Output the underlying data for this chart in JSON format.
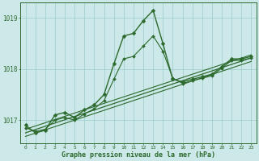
{
  "xlabel": "Graphe pression niveau de la mer (hPa)",
  "background_color": "#cce8e8",
  "plot_bg_color": "#cce8e8",
  "line_color": "#2d6a2d",
  "grid_color": "#99cccc",
  "tick_color": "#2d6a2d",
  "label_color": "#2d6a2d",
  "xlim": [
    -0.5,
    23.5
  ],
  "ylim": [
    1016.55,
    1019.3
  ],
  "yticks": [
    1017,
    1018,
    1019
  ],
  "xticks": [
    0,
    1,
    2,
    3,
    4,
    5,
    6,
    7,
    8,
    9,
    10,
    11,
    12,
    13,
    14,
    15,
    16,
    17,
    18,
    19,
    20,
    21,
    22,
    23
  ],
  "series": [
    {
      "x": [
        0,
        1,
        2,
        3,
        4,
        5,
        6,
        7,
        8,
        9,
        10,
        11,
        12,
        13,
        14,
        15,
        16,
        17,
        18,
        19,
        20,
        21,
        22,
        23
      ],
      "y": [
        1016.9,
        1016.75,
        1016.8,
        1017.1,
        1017.15,
        1017.05,
        1017.2,
        1017.3,
        1017.5,
        1018.1,
        1018.65,
        1018.7,
        1018.95,
        1019.15,
        1018.5,
        1017.8,
        1017.75,
        1017.8,
        1017.85,
        1017.9,
        1018.05,
        1018.2,
        1018.2,
        1018.25
      ],
      "marker": "D",
      "markersize": 2.5,
      "linewidth": 1.0,
      "zorder": 4
    },
    {
      "x": [
        0,
        1,
        2,
        3,
        4,
        5,
        6,
        7,
        8,
        9,
        10,
        11,
        12,
        13,
        14,
        15,
        16,
        17,
        18,
        19,
        20,
        21,
        22,
        23
      ],
      "y": [
        1016.85,
        1016.78,
        1016.82,
        1017.0,
        1017.05,
        1017.0,
        1017.12,
        1017.22,
        1017.38,
        1017.8,
        1018.2,
        1018.25,
        1018.45,
        1018.65,
        1018.35,
        1017.82,
        1017.72,
        1017.77,
        1017.82,
        1017.87,
        1018.02,
        1018.17,
        1018.17,
        1018.22
      ],
      "marker": "D",
      "markersize": 2.0,
      "linewidth": 0.8,
      "zorder": 3
    },
    {
      "x": [
        0,
        23
      ],
      "y": [
        1016.75,
        1018.22
      ],
      "marker": null,
      "markersize": 0,
      "linewidth": 0.9,
      "zorder": 2
    },
    {
      "x": [
        0,
        23
      ],
      "y": [
        1016.82,
        1018.28
      ],
      "marker": null,
      "markersize": 0,
      "linewidth": 0.8,
      "zorder": 2
    },
    {
      "x": [
        0,
        23
      ],
      "y": [
        1016.68,
        1018.15
      ],
      "marker": null,
      "markersize": 0,
      "linewidth": 0.8,
      "zorder": 2
    }
  ]
}
